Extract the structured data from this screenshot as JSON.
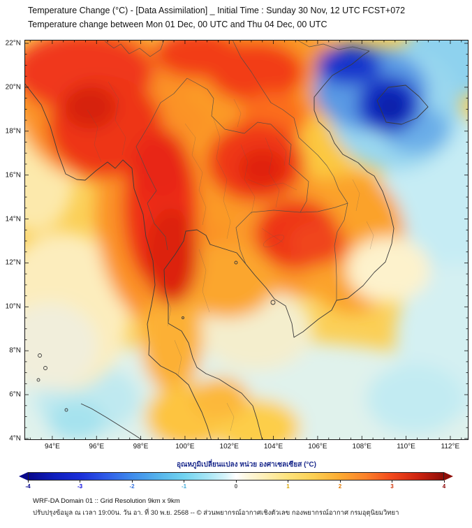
{
  "header": {
    "title_line1": "Temperature Change (°C) - [Data Assimilation] _ Initial Time : Sunday 30 Nov, 12 UTC FCST+072",
    "title_line2": "Temperature change between Mon 01 Dec, 00 UTC and Thu 04 Dec, 00 UTC"
  },
  "map": {
    "lat_ticks": [
      "22°N",
      "20°N",
      "18°N",
      "16°N",
      "14°N",
      "12°N",
      "10°N",
      "8°N",
      "6°N",
      "4°N"
    ],
    "lon_ticks": [
      "94°E",
      "96°E",
      "98°E",
      "100°E",
      "102°E",
      "104°E",
      "106°E",
      "108°E",
      "110°E",
      "112°E"
    ]
  },
  "colorbar": {
    "label_thai": "อุณหภูมิเปลี่ยนแปลง หน่วย องศาเซลเซียส (°C)",
    "label_color": "#1b2a8c",
    "range": [
      -4,
      4
    ],
    "ticks": [
      {
        "v": -4,
        "label": "-4",
        "color": "#00008b"
      },
      {
        "v": -3,
        "label": "-3",
        "color": "#0000e0"
      },
      {
        "v": -2,
        "label": "-2",
        "color": "#2f6fde"
      },
      {
        "v": -1,
        "label": "-1",
        "color": "#3aa8d8"
      },
      {
        "v": 0,
        "label": "0",
        "color": "#555555"
      },
      {
        "v": 1,
        "label": "1",
        "color": "#d9a400"
      },
      {
        "v": 2,
        "label": "2",
        "color": "#e07800"
      },
      {
        "v": 3,
        "label": "3",
        "color": "#d03000"
      },
      {
        "v": 4,
        "label": "4",
        "color": "#8b0000"
      }
    ],
    "stops": [
      {
        "v": -4,
        "c": "#08088c"
      },
      {
        "v": -3.5,
        "c": "#0f1fbe"
      },
      {
        "v": -3,
        "c": "#1b2fd8"
      },
      {
        "v": -2.5,
        "c": "#2f5ce8"
      },
      {
        "v": -2,
        "c": "#3f8cec"
      },
      {
        "v": -1.5,
        "c": "#55b4ec"
      },
      {
        "v": -1,
        "c": "#72d4f0"
      },
      {
        "v": -0.5,
        "c": "#aee8f6"
      },
      {
        "v": -0.2,
        "c": "#d8f4fa"
      },
      {
        "v": 0,
        "c": "#ffffff"
      },
      {
        "v": 0.2,
        "c": "#fdf8e0"
      },
      {
        "v": 0.5,
        "c": "#fdf0bc"
      },
      {
        "v": 1,
        "c": "#fde37c"
      },
      {
        "v": 1.5,
        "c": "#fccf52"
      },
      {
        "v": 2,
        "c": "#fcab32"
      },
      {
        "v": 2.5,
        "c": "#fb812a"
      },
      {
        "v": 3,
        "c": "#f2491c"
      },
      {
        "v": 3.5,
        "c": "#ce2410"
      },
      {
        "v": 4,
        "c": "#8f0d08"
      }
    ]
  },
  "footer": {
    "line1": "WRF-DA Domain 01 :: Grid Resolution 9km x 9km",
    "line2": "ปรับปรุงข้อมูล ณ เวลา 19:00น. วัน อา. ที่ 30 พ.ย. 2568 -- © ส่วนพยากรณ์อากาศเชิงตัวเลข กองพยากรณ์อากาศ กรมอุตุนิยมวิทยา"
  },
  "chart_data": {
    "type": "heatmap",
    "title": "Temperature change (°C) between Mon 01 Dec 00 UTC and Thu 04 Dec 00 UTC",
    "units": "°C",
    "lon_range": [
      92.74,
      112.82
    ],
    "lat_range": [
      3.9,
      22.16
    ],
    "value_range": [
      -4,
      4
    ],
    "base": {
      "color": "#fbcf56",
      "value": 1
    },
    "regions": [
      {
        "name": "sea-cool-south",
        "lon": 102.8,
        "lat": 5.0,
        "rx": 12.6,
        "ry": 3.5,
        "color": "#e0f2ec",
        "value": -0.3
      },
      {
        "name": "east-sea-cyan",
        "lon": 111.7,
        "lat": 14.2,
        "rx": 3.0,
        "ry": 4.8,
        "color": "#c6ecf4",
        "value": -0.7
      },
      {
        "name": "east-sea-cyan-2",
        "lon": 112.3,
        "lat": 8.5,
        "rx": 2.8,
        "ry": 3.5,
        "color": "#d4f0f2",
        "value": -0.5
      },
      {
        "name": "se-sea-cyan",
        "lon": 110.4,
        "lat": 5.8,
        "rx": 2.2,
        "ry": 1.6,
        "color": "#c2ebf2",
        "value": -0.8
      },
      {
        "name": "sw-cyan",
        "lon": 95.6,
        "lat": 5.8,
        "rx": 2.4,
        "ry": 1.6,
        "color": "#bfe9f0",
        "value": -0.8
      },
      {
        "name": "sw-cyan-2",
        "lon": 95.1,
        "lat": 4.8,
        "rx": 1.3,
        "ry": 0.9,
        "color": "#a5e2ee",
        "value": -1
      },
      {
        "name": "gulf-pale",
        "lon": 103.2,
        "lat": 9.0,
        "rx": 2.6,
        "ry": 1.9,
        "color": "#f4eecd",
        "value": 0.2
      },
      {
        "name": "andaman-pale",
        "lon": 94.5,
        "lat": 9.8,
        "rx": 3.0,
        "ry": 3.6,
        "color": "#fcedbd",
        "value": 0.4
      },
      {
        "name": "andaman-white",
        "lon": 93.9,
        "lat": 8.2,
        "rx": 2.2,
        "ry": 2.0,
        "color": "#f1eedb",
        "value": 0.1
      },
      {
        "name": "west-edge-pale",
        "lon": 93.2,
        "lat": 16.0,
        "rx": 1.8,
        "ry": 2.6,
        "color": "#fce9ac",
        "value": 0.5
      },
      {
        "name": "north-orange-field",
        "lon": 103.5,
        "lat": 20.4,
        "rx": 4.0,
        "ry": 2.6,
        "color": "#fb9a26",
        "value": 2
      },
      {
        "name": "nw-orange-field",
        "lon": 96.2,
        "lat": 19.3,
        "rx": 3.8,
        "ry": 3.6,
        "color": "#fb9226",
        "value": 2
      },
      {
        "name": "west-orange-halo",
        "lon": 99.2,
        "lat": 14.2,
        "rx": 3.2,
        "ry": 5.2,
        "color": "#fb9226",
        "value": 2
      },
      {
        "name": "ne-thailand-orange",
        "lon": 103.3,
        "lat": 16.1,
        "rx": 3.6,
        "ry": 2.9,
        "color": "#fb9a28",
        "value": 2
      },
      {
        "name": "cambodia-orange-halo",
        "lon": 105.2,
        "lat": 13.1,
        "rx": 3.2,
        "ry": 2.6,
        "color": "#fb9a2a",
        "value": 2
      },
      {
        "name": "vietnam-south-orange",
        "lon": 107.6,
        "lat": 12.9,
        "rx": 2.4,
        "ry": 3.2,
        "color": "#fba22a",
        "value": 2
      },
      {
        "name": "se-coast-orange",
        "lon": 101.9,
        "lat": 11.2,
        "rx": 2.2,
        "ry": 1.7,
        "color": "#fba62e",
        "value": 2
      },
      {
        "name": "peninsula-orange",
        "lon": 99.4,
        "lat": 8.5,
        "rx": 1.4,
        "ry": 2.4,
        "color": "#fcb034",
        "value": 1.8
      },
      {
        "name": "viet-coast-yellow",
        "lon": 106.3,
        "lat": 17.3,
        "rx": 1.3,
        "ry": 1.5,
        "color": "#fcc840",
        "value": 1.2
      },
      {
        "name": "south-yellow-1",
        "lon": 100.2,
        "lat": 5.0,
        "rx": 2.0,
        "ry": 1.5,
        "color": "#fdc440",
        "value": 1.2
      },
      {
        "name": "south-yellow-2",
        "lon": 103.2,
        "lat": 4.5,
        "rx": 2.0,
        "ry": 1.3,
        "color": "#fdce4a",
        "value": 1
      },
      {
        "name": "south-yellow-3",
        "lon": 101.6,
        "lat": 5.8,
        "rx": 1.3,
        "ry": 1.0,
        "color": "#fcb83a",
        "value": 1.5
      },
      {
        "name": "north-red",
        "lon": 103.2,
        "lat": 20.7,
        "rx": 2.2,
        "ry": 1.4,
        "color": "#f23c14",
        "value": 3
      },
      {
        "name": "top-red-mid",
        "lon": 100.6,
        "lat": 21.5,
        "rx": 2.0,
        "ry": 1.1,
        "color": "#f23c18",
        "value": 3
      },
      {
        "name": "north-red-tongue",
        "lon": 104.0,
        "lat": 18.6,
        "rx": 1.5,
        "ry": 1.2,
        "color": "#fb6d1c",
        "value": 2.5
      },
      {
        "name": "nw-red",
        "lon": 95.4,
        "lat": 20.7,
        "rx": 3.2,
        "ry": 1.8,
        "color": "#f0381c",
        "value": 3
      },
      {
        "name": "nw-red-2",
        "lon": 96.4,
        "lat": 18.2,
        "rx": 2.6,
        "ry": 2.3,
        "color": "#ee3418",
        "value": 3
      },
      {
        "name": "nw-red-core",
        "lon": 95.7,
        "lat": 19.1,
        "rx": 1.2,
        "ry": 1.0,
        "color": "#d62410",
        "value": 3.5
      },
      {
        "name": "west-red-band",
        "lon": 98.9,
        "lat": 14.5,
        "rx": 1.7,
        "ry": 3.6,
        "color": "#ee2e14",
        "value": 3
      },
      {
        "name": "west-red-core-n",
        "lon": 98.9,
        "lat": 16.4,
        "rx": 1.3,
        "ry": 1.6,
        "color": "#e82812",
        "value": 3.4
      },
      {
        "name": "west-red-core-s",
        "lon": 99.4,
        "lat": 12.3,
        "rx": 1.2,
        "ry": 2.2,
        "color": "#dc2008",
        "value": 3.6
      },
      {
        "name": "ne-thailand-red",
        "lon": 103.2,
        "lat": 16.6,
        "rx": 2.2,
        "ry": 1.8,
        "color": "#ef3818",
        "value": 3
      },
      {
        "name": "ne-thailand-red-core",
        "lon": 103.5,
        "lat": 16.3,
        "rx": 1.1,
        "ry": 0.9,
        "color": "#e02410",
        "value": 3.5
      },
      {
        "name": "cambodia-red",
        "lon": 105.05,
        "lat": 13.3,
        "rx": 1.9,
        "ry": 1.6,
        "color": "#ee3616",
        "value": 3
      },
      {
        "name": "cambodia-red-2",
        "lon": 106.0,
        "lat": 12.9,
        "rx": 1.3,
        "ry": 1.0,
        "color": "#f0441a",
        "value": 3
      },
      {
        "name": "viet-coast-pale",
        "lon": 109.2,
        "lat": 11.7,
        "rx": 1.9,
        "ry": 1.5,
        "color": "#fdf2cc",
        "value": 0.3
      },
      {
        "name": "ne-corner-cyan",
        "lon": 112.3,
        "lat": 21.4,
        "rx": 2.5,
        "ry": 1.8,
        "color": "#8ed2ee",
        "value": -1.3
      },
      {
        "name": "tonkin-cool-field",
        "lon": 109.5,
        "lat": 19.0,
        "rx": 3.0,
        "ry": 2.8,
        "color": "#9ad7ef",
        "value": -1.2
      },
      {
        "name": "tonkin-blue",
        "lon": 108.4,
        "lat": 19.9,
        "rx": 2.6,
        "ry": 1.9,
        "color": "#5a9ae4",
        "value": -2
      },
      {
        "name": "se-blue-patch",
        "lon": 110.4,
        "lat": 18.1,
        "rx": 1.5,
        "ry": 1.1,
        "color": "#6bade8",
        "value": -1.8
      },
      {
        "name": "tonkin-deep-blue-nw",
        "lon": 107.4,
        "lat": 21.0,
        "rx": 1.5,
        "ry": 0.9,
        "color": "#1335cc",
        "value": -3.5
      },
      {
        "name": "hainan-deep-blue",
        "lon": 109.2,
        "lat": 19.2,
        "rx": 1.4,
        "ry": 1.3,
        "color": "#0c2cc4",
        "value": -3.5
      },
      {
        "name": "hainan-deep-core",
        "lon": 109.3,
        "lat": 19.1,
        "rx": 0.7,
        "ry": 0.7,
        "color": "#0a22a8",
        "value": -4
      }
    ]
  }
}
